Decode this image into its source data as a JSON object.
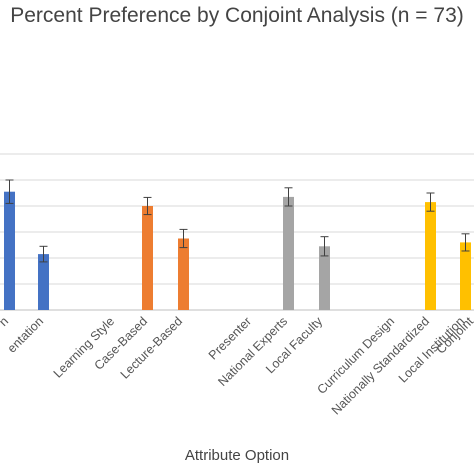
{
  "chart_data": {
    "type": "bar",
    "title": "Percent Preference by Conjoint Analysis (n = 73)",
    "xlabel": "Attribute Option",
    "ylabel": "",
    "ylim": [
      0,
      60
    ],
    "grid": true,
    "tick_labels": [
      "n",
      "entation",
      "Learning Style",
      "Case-Based",
      "Lecture-Based",
      "Presenter",
      "National Experts",
      "Local Faculty",
      "Curriculum Design",
      "Nationally Standardized",
      "Local Institution",
      "Conjoint"
    ],
    "bars": [
      {
        "category": "n",
        "value": 45.5,
        "error": 4.5,
        "color": "#4472C4"
      },
      {
        "category": "entation",
        "value": 21.5,
        "error": 3.0,
        "color": "#4472C4"
      },
      {
        "category": "Case-Based",
        "value": 40.0,
        "error": 3.3,
        "color": "#ED7D31"
      },
      {
        "category": "Lecture-Based",
        "value": 27.5,
        "error": 3.5,
        "color": "#ED7D31"
      },
      {
        "category": "National Experts",
        "value": 43.5,
        "error": 3.5,
        "color": "#A5A5A5"
      },
      {
        "category": "Local Faculty",
        "value": 24.5,
        "error": 3.7,
        "color": "#A5A5A5"
      },
      {
        "category": "Nationally Standardized",
        "value": 41.5,
        "error": 3.5,
        "color": "#FFC000"
      },
      {
        "category": "Local Institution",
        "value": 26.0,
        "error": 3.3,
        "color": "#FFC000"
      }
    ]
  }
}
